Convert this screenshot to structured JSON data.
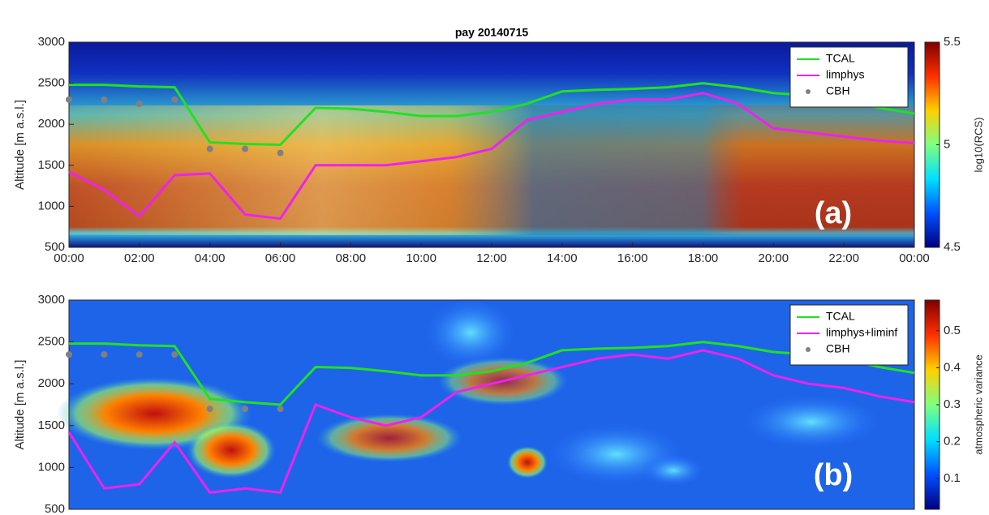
{
  "chart_data": [
    {
      "type": "line",
      "title": "pay 20140715",
      "y_label": "Altitude [m a.s.l.]",
      "annotation": "(a)",
      "x": [
        0,
        1,
        2,
        3,
        4,
        5,
        6,
        7,
        8,
        9,
        10,
        11,
        12,
        13,
        14,
        15,
        16,
        17,
        18,
        19,
        20,
        21,
        22,
        23,
        24
      ],
      "xlim": [
        0,
        24
      ],
      "xticks": [
        {
          "value": 0,
          "label": "00:00"
        },
        {
          "value": 2,
          "label": "02:00"
        },
        {
          "value": 4,
          "label": "04:00"
        },
        {
          "value": 6,
          "label": "06:00"
        },
        {
          "value": 8,
          "label": "08:00"
        },
        {
          "value": 10,
          "label": "10:00"
        },
        {
          "value": 12,
          "label": "12:00"
        },
        {
          "value": 14,
          "label": "14:00"
        },
        {
          "value": 16,
          "label": "16:00"
        },
        {
          "value": 18,
          "label": "18:00"
        },
        {
          "value": 20,
          "label": "20:00"
        },
        {
          "value": 22,
          "label": "22:00"
        },
        {
          "value": 24,
          "label": "00:00"
        }
      ],
      "ylim": [
        500,
        3000
      ],
      "yticks": [
        500,
        1000,
        1500,
        2000,
        2500,
        3000
      ],
      "series": [
        {
          "name": "TCAL",
          "color": "#22e022",
          "style": "line",
          "values": [
            2480,
            2480,
            2460,
            2450,
            1780,
            1760,
            1750,
            2200,
            2190,
            2150,
            2100,
            2100,
            2150,
            2250,
            2400,
            2420,
            2430,
            2450,
            2500,
            2450,
            2380,
            2350,
            2300,
            2200,
            2130
          ]
        },
        {
          "name": "limphys",
          "color": "#ee22ee",
          "style": "line",
          "values": [
            1420,
            1200,
            880,
            1380,
            1400,
            900,
            850,
            1500,
            1500,
            1500,
            1550,
            1600,
            1700,
            2050,
            2150,
            2250,
            2300,
            2300,
            2380,
            2250,
            1950,
            1900,
            1850,
            1800,
            1770
          ]
        },
        {
          "name": "CBH",
          "color": "#808080",
          "style": "dots",
          "values": [
            2300,
            2300,
            2250,
            2300,
            1700,
            1700,
            1650,
            null,
            null,
            null,
            null,
            null,
            null,
            null,
            null,
            null,
            null,
            null,
            null,
            null,
            null,
            null,
            null,
            null,
            null
          ]
        }
      ],
      "colorbar": {
        "label": "log10(RCS)",
        "clim": [
          4.5,
          5.5
        ],
        "ticks": [
          4.5,
          5,
          5.5
        ],
        "colormap": [
          "#00007f",
          "#0050ff",
          "#00dfff",
          "#7fff7f",
          "#ffd000",
          "#ff3000",
          "#7f0000"
        ]
      },
      "legend": "upper right"
    },
    {
      "type": "line",
      "y_label": "Altitude [m a.s.l.]",
      "annotation": "(b)",
      "x": [
        0,
        1,
        2,
        3,
        4,
        5,
        6,
        7,
        8,
        9,
        10,
        11,
        12,
        13,
        14,
        15,
        16,
        17,
        18,
        19,
        20,
        21,
        22,
        23,
        24
      ],
      "xlim": [
        0,
        24
      ],
      "ylim": [
        500,
        3000
      ],
      "yticks": [
        500,
        1000,
        1500,
        2000,
        2500,
        3000
      ],
      "series": [
        {
          "name": "TCAL",
          "color": "#22e022",
          "style": "line",
          "values": [
            2480,
            2480,
            2460,
            2450,
            1820,
            1780,
            1750,
            2200,
            2190,
            2150,
            2100,
            2100,
            2150,
            2250,
            2400,
            2420,
            2430,
            2450,
            2500,
            2450,
            2380,
            2350,
            2300,
            2200,
            2130
          ]
        },
        {
          "name": "limphys+liminf",
          "color": "#ee22ee",
          "style": "line",
          "values": [
            1420,
            750,
            800,
            1300,
            700,
            750,
            700,
            1750,
            1600,
            1500,
            1600,
            1900,
            2000,
            2100,
            2200,
            2300,
            2350,
            2300,
            2400,
            2300,
            2100,
            2000,
            1950,
            1850,
            1780
          ]
        },
        {
          "name": "CBH",
          "color": "#808080",
          "style": "dots",
          "values": [
            2350,
            2350,
            2350,
            2350,
            1700,
            1700,
            1700,
            null,
            null,
            null,
            null,
            null,
            null,
            null,
            null,
            null,
            null,
            null,
            null,
            null,
            null,
            null,
            null,
            null,
            null
          ]
        }
      ],
      "colorbar": {
        "label": "atmospheric variance",
        "clim": [
          0.017,
          0.583
        ],
        "ticks": [
          0.1,
          0.2,
          0.3,
          0.4,
          0.5
        ],
        "colormap": [
          "#00007f",
          "#0050ff",
          "#00dfff",
          "#7fff7f",
          "#ffd000",
          "#ff3000",
          "#7f0000"
        ]
      },
      "legend": "upper right"
    }
  ]
}
